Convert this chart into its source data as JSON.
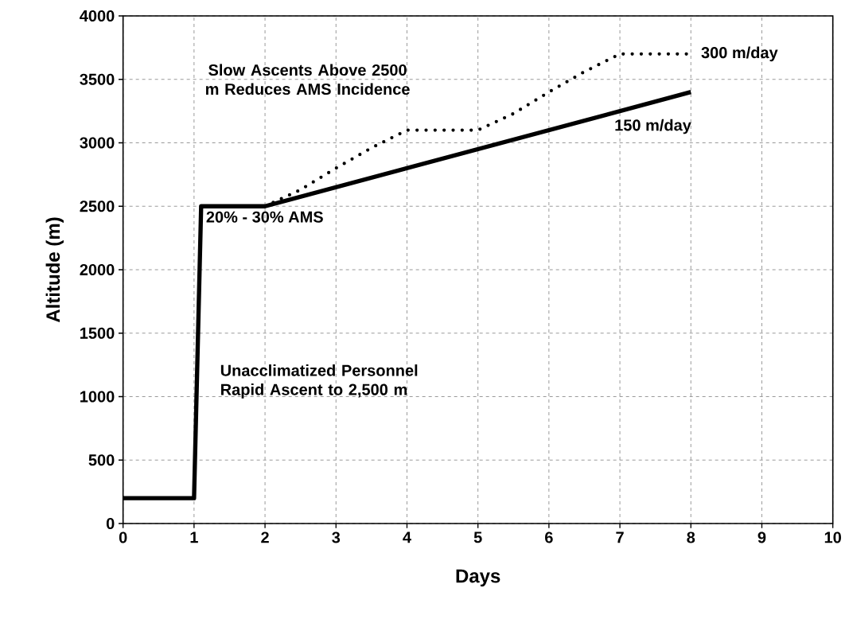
{
  "chart_data": {
    "type": "line",
    "xlabel": "Days",
    "ylabel": "Altitude (m)",
    "xlim": [
      0,
      10
    ],
    "ylim": [
      0,
      4000
    ],
    "xticks": [
      0,
      1,
      2,
      3,
      4,
      5,
      6,
      7,
      8,
      9,
      10
    ],
    "yticks": [
      0,
      500,
      1000,
      1500,
      2000,
      2500,
      3000,
      3500,
      4000
    ],
    "grid": true,
    "series": [
      {
        "name": "150 m/day",
        "color": "#000000",
        "line_style": "solid",
        "x": [
          0,
          1,
          1.1,
          2,
          8
        ],
        "values": [
          200,
          200,
          2500,
          2500,
          3400
        ]
      },
      {
        "name": "300 m/day",
        "color": "#000000",
        "line_style": "dotted",
        "x": [
          2,
          2.5,
          3,
          3.5,
          4,
          5,
          5.5,
          6,
          6.5,
          7,
          8
        ],
        "values": [
          2500,
          2630,
          2800,
          2960,
          3100,
          3100,
          3230,
          3400,
          3560,
          3700,
          3700
        ]
      }
    ],
    "annotations": [
      "Slow Ascents Above 2500 m Reduces AMS Incidence",
      "20% - 30% AMS",
      "Unacclimatized Personnel Rapid Ascent to 2,500 m"
    ]
  }
}
